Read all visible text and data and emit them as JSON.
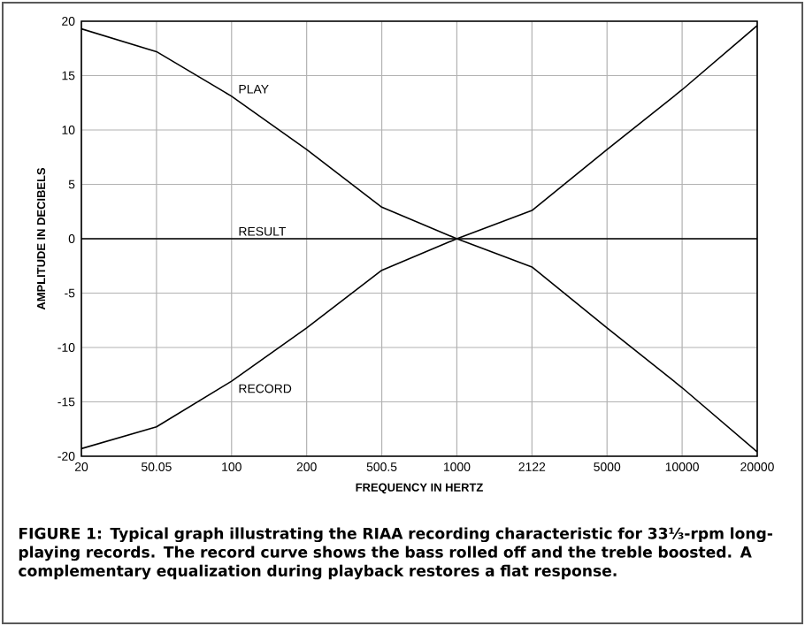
{
  "chart_data": {
    "type": "line",
    "xlabel": "FREQUENCY IN HERTZ",
    "ylabel": "AMPLITUDE IN DECIBELS",
    "categories": [
      "20",
      "50.05",
      "100",
      "200",
      "500.5",
      "1000",
      "2122",
      "5000",
      "10000",
      "20000"
    ],
    "series": [
      {
        "name": "PLAY",
        "color": "#000000",
        "values": [
          19.3,
          17.2,
          13.1,
          8.2,
          2.9,
          0,
          -2.6,
          -8.2,
          -13.7,
          -19.6
        ]
      },
      {
        "name": "RESULT",
        "color": "#000000",
        "values": [
          0,
          0,
          0,
          0,
          0,
          0,
          0,
          0,
          0,
          0
        ]
      },
      {
        "name": "RECORD",
        "color": "#000000",
        "values": [
          -19.3,
          -17.3,
          -13.1,
          -8.2,
          -2.9,
          0,
          2.6,
          8.2,
          13.7,
          19.6
        ]
      }
    ],
    "ylim": [
      -20,
      20
    ],
    "yticks": [
      -20,
      -15,
      -10,
      -5,
      0,
      5,
      10,
      15,
      20
    ],
    "grid": true,
    "legend": false,
    "marker": "none",
    "line_style": "solid",
    "annotations": [
      "FIGURE 1: Typical graph illustrating the RIAA recording characteristic for 33⅓-rpm long-playing records. The record curve shows the bass rolled off and the treble boosted. A complementary equalization during playback restores a flat response."
    ]
  }
}
